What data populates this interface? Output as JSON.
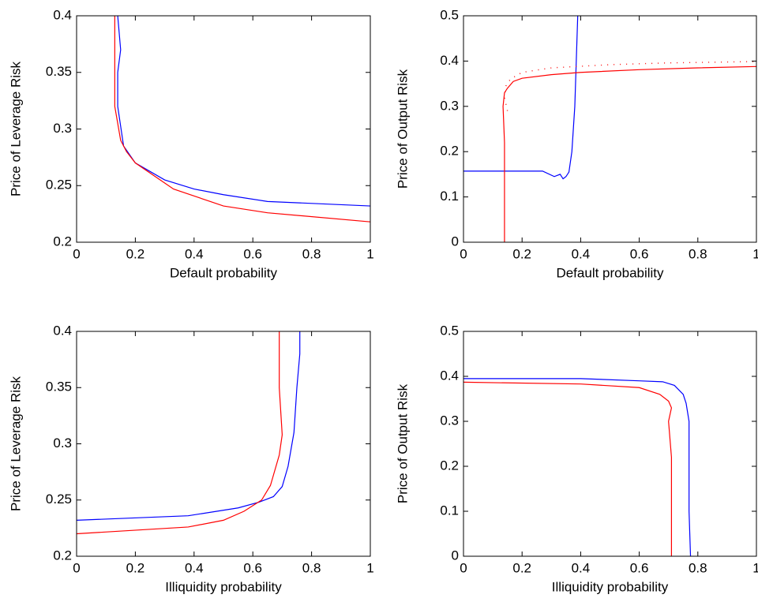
{
  "chart_data": [
    {
      "type": "line",
      "xlabel": "Default probability",
      "ylabel": "Price of Leverage Risk",
      "xlim": [
        0,
        1
      ],
      "ylim": [
        0.2,
        0.4
      ],
      "xticks": [
        0,
        0.2,
        0.4,
        0.6,
        0.8,
        1
      ],
      "yticks": [
        0.2,
        0.25,
        0.3,
        0.35,
        0.4
      ],
      "series": [
        {
          "color": "#0000ff",
          "x": [
            0.14,
            0.15,
            0.14,
            0.14,
            0.16,
            0.2,
            0.3,
            0.4,
            0.5,
            0.65,
            1
          ],
          "values": [
            0.4,
            0.37,
            0.35,
            0.32,
            0.285,
            0.27,
            0.255,
            0.247,
            0.242,
            0.236,
            0.232
          ]
        },
        {
          "color": "#ff0000",
          "x": [
            0.13,
            0.13,
            0.13,
            0.15,
            0.17,
            0.2,
            0.33,
            0.5,
            0.65,
            1
          ],
          "values": [
            0.4,
            0.35,
            0.32,
            0.29,
            0.28,
            0.27,
            0.247,
            0.232,
            0.226,
            0.218
          ]
        }
      ]
    },
    {
      "type": "line",
      "xlabel": "Default probability",
      "ylabel": "Price of Output Risk",
      "xlim": [
        0,
        1
      ],
      "ylim": [
        0,
        0.5
      ],
      "xticks": [
        0,
        0.2,
        0.4,
        0.6,
        0.8,
        1
      ],
      "yticks": [
        0,
        0.1,
        0.2,
        0.3,
        0.4,
        0.5
      ],
      "series": [
        {
          "color": "#0000ff",
          "x": [
            0,
            0.27,
            0.31,
            0.33,
            0.34,
            0.35,
            0.36,
            0.37,
            0.38,
            0.385,
            0.39
          ],
          "values": [
            0.157,
            0.157,
            0.145,
            0.15,
            0.14,
            0.145,
            0.155,
            0.2,
            0.3,
            0.4,
            0.5
          ]
        },
        {
          "color": "#ff0000",
          "x": [
            0.14,
            0.14,
            0.135,
            0.14,
            0.15,
            0.17,
            0.2,
            0.3,
            0.4,
            0.6,
            0.8,
            1
          ],
          "values": [
            0,
            0.22,
            0.3,
            0.33,
            0.34,
            0.355,
            0.362,
            0.37,
            0.375,
            0.381,
            0.385,
            0.388
          ]
        },
        {
          "color": "#ff0000",
          "dash": "dotted",
          "x": [
            0.15,
            0.14,
            0.145,
            0.16,
            0.2,
            0.3,
            0.5,
            0.7,
            1
          ],
          "values": [
            0.29,
            0.32,
            0.345,
            0.36,
            0.375,
            0.385,
            0.392,
            0.396,
            0.399
          ]
        }
      ]
    },
    {
      "type": "line",
      "xlabel": "Illiquidity probability",
      "ylabel": "Price of Leverage Risk",
      "xlim": [
        0,
        1
      ],
      "ylim": [
        0.2,
        0.4
      ],
      "xticks": [
        0,
        0.2,
        0.4,
        0.6,
        0.8,
        1
      ],
      "yticks": [
        0.2,
        0.25,
        0.3,
        0.35,
        0.4
      ],
      "series": [
        {
          "color": "#0000ff",
          "x": [
            0,
            0.38,
            0.55,
            0.62,
            0.67,
            0.7,
            0.72,
            0.74,
            0.75,
            0.76,
            0.76
          ],
          "values": [
            0.232,
            0.236,
            0.243,
            0.248,
            0.253,
            0.262,
            0.28,
            0.31,
            0.35,
            0.38,
            0.4
          ]
        },
        {
          "color": "#ff0000",
          "x": [
            0,
            0.38,
            0.5,
            0.57,
            0.63,
            0.66,
            0.69,
            0.7,
            0.69,
            0.69
          ],
          "values": [
            0.22,
            0.226,
            0.232,
            0.24,
            0.25,
            0.263,
            0.29,
            0.308,
            0.35,
            0.4
          ]
        }
      ]
    },
    {
      "type": "line",
      "xlabel": "Illiquidity probability",
      "ylabel": "Price of Output Risk",
      "xlim": [
        0,
        1
      ],
      "ylim": [
        0,
        0.5
      ],
      "xticks": [
        0,
        0.2,
        0.4,
        0.6,
        0.8,
        1
      ],
      "yticks": [
        0,
        0.1,
        0.2,
        0.3,
        0.4,
        0.5
      ],
      "series": [
        {
          "color": "#0000ff",
          "x": [
            0,
            0.4,
            0.6,
            0.68,
            0.72,
            0.75,
            0.76,
            0.77,
            0.77,
            0.775
          ],
          "values": [
            0.395,
            0.395,
            0.39,
            0.388,
            0.38,
            0.36,
            0.34,
            0.3,
            0.1,
            0
          ]
        },
        {
          "color": "#ff0000",
          "x": [
            0,
            0.4,
            0.6,
            0.67,
            0.7,
            0.71,
            0.7,
            0.71,
            0.71
          ],
          "values": [
            0.387,
            0.383,
            0.375,
            0.36,
            0.345,
            0.33,
            0.3,
            0.22,
            0
          ]
        }
      ]
    }
  ]
}
